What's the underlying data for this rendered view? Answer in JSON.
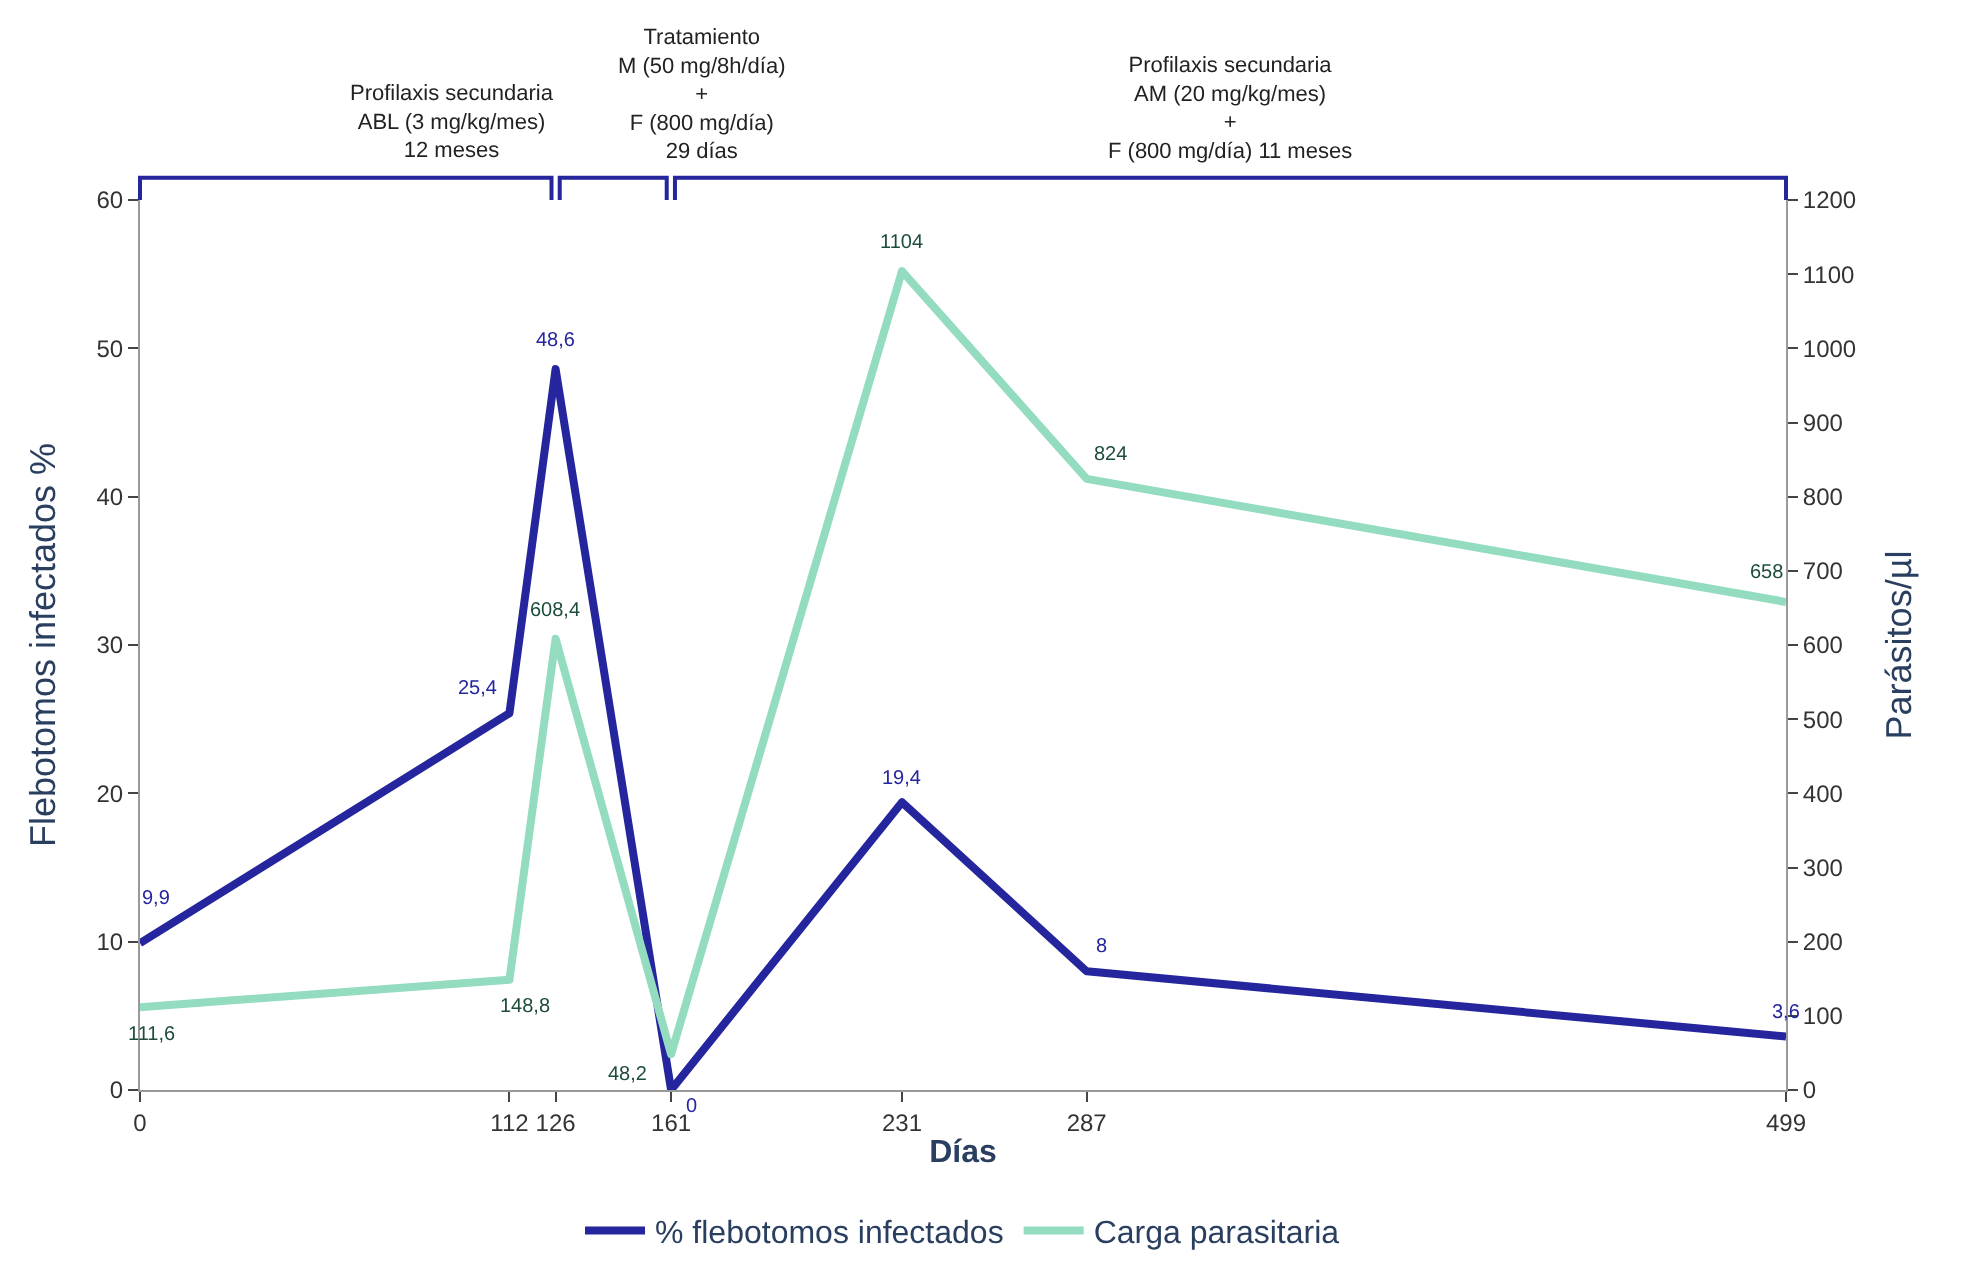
{
  "chart_data": {
    "type": "line",
    "xlabel": "Días",
    "ylabel": "Flebotomos infectados %",
    "y2label": "Parásitos/µl",
    "x": [
      0,
      112,
      126,
      161,
      231,
      287,
      499
    ],
    "xlim": [
      0,
      499
    ],
    "xticks": [
      0,
      112,
      126,
      161,
      231,
      287,
      499
    ],
    "ylim": [
      0,
      60
    ],
    "yticks": [
      0,
      10,
      20,
      30,
      40,
      50,
      60
    ],
    "y2lim": [
      0,
      1200
    ],
    "y2ticks": [
      0,
      100,
      200,
      300,
      400,
      500,
      600,
      700,
      800,
      900,
      1000,
      1100,
      1200
    ],
    "series": [
      {
        "name": "% flebotomos infectados",
        "color": "#25259e",
        "values": [
          9.9,
          25.4,
          48.6,
          0,
          19.4,
          8,
          3.6
        ],
        "value_labels": [
          "9,9",
          "25,4",
          "48,6",
          "0",
          "19,4",
          "8",
          "3,6"
        ]
      },
      {
        "name": "Carga parasitaria",
        "color": "#93dcc0",
        "axis": "y2",
        "values": [
          111.6,
          148.8,
          608.4,
          48.2,
          1104,
          824,
          658
        ],
        "value_labels": [
          "111,6",
          "148,8",
          "608,4",
          "48,2",
          "1104",
          "824",
          "658"
        ]
      }
    ],
    "annotations": [
      "Profilaxis secundaria\nABL (3 mg/kg/mes)\n12 meses",
      "Tratamiento\nM (50 mg/8h/día)\n+\nF (800 mg/día)\n29 días",
      "Profilaxis secundaria\nAM (20 mg/kg/mes)\n+\nF (800 mg/día) 11 meses"
    ],
    "marker": "none",
    "grid": false,
    "legend": "bottom"
  }
}
